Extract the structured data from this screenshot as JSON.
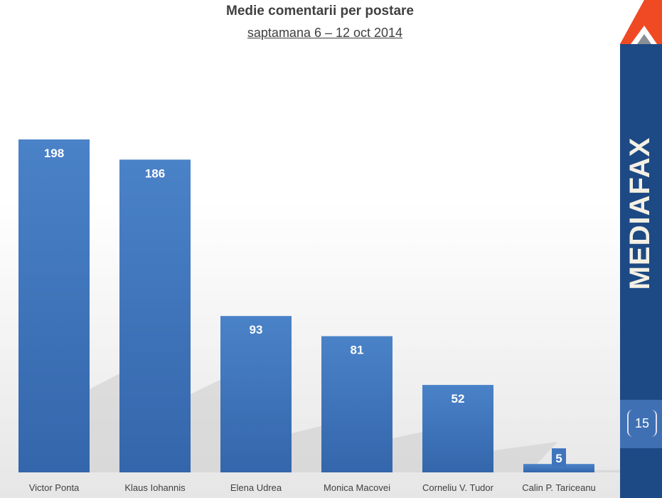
{
  "chart_data": {
    "type": "bar",
    "title": "Medie comentarii per postare",
    "subtitle": "saptamana 6 – 12 oct 2014",
    "categories": [
      "Victor Ponta",
      "Klaus Iohannis",
      "Elena Udrea",
      "Monica Macovei",
      "Corneliu V. Tudor",
      "Calin P. Tariceanu"
    ],
    "values": [
      198,
      186,
      93,
      81,
      52,
      5
    ],
    "ylim": [
      0,
      198
    ],
    "grid": false,
    "bar_color": "#3f75bd",
    "data_labels": true
  },
  "sidebar": {
    "brand": "MEDIAFAX",
    "page_number": "15",
    "color": "#1d4a84",
    "accent": "#f04a24"
  }
}
